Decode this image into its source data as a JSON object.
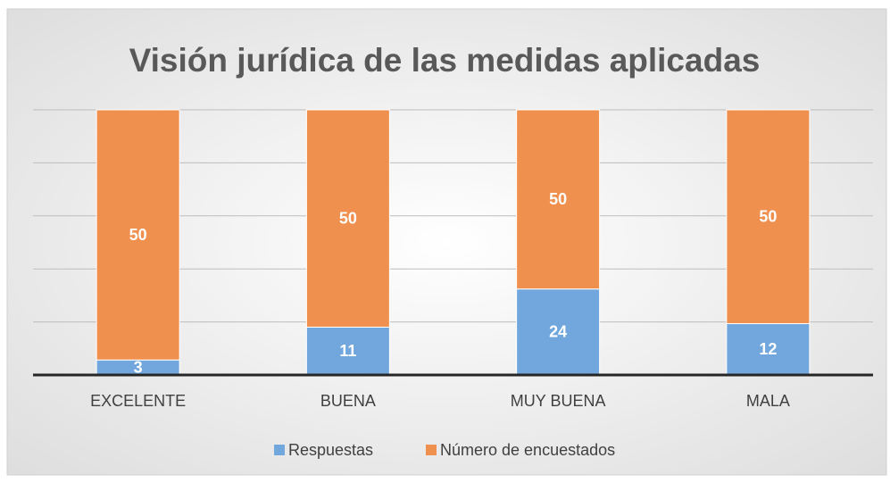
{
  "chart_data": {
    "type": "bar",
    "stacking": "percent",
    "title": "Visión jurídica de las medidas aplicadas",
    "categories": [
      "EXCELENTE",
      "BUENA",
      "MUY BUENA",
      "MALA"
    ],
    "series": [
      {
        "name": "Respuestas",
        "color": "#72a7dd",
        "values": [
          3,
          11,
          24,
          12
        ]
      },
      {
        "name": "Número de encuestados",
        "color": "#f0904e",
        "values": [
          50,
          50,
          50,
          50
        ]
      }
    ],
    "ylim": [
      0,
      100
    ],
    "yticks": [
      0,
      20,
      40,
      60,
      80,
      100
    ],
    "grid": true,
    "legend": "bottom"
  }
}
